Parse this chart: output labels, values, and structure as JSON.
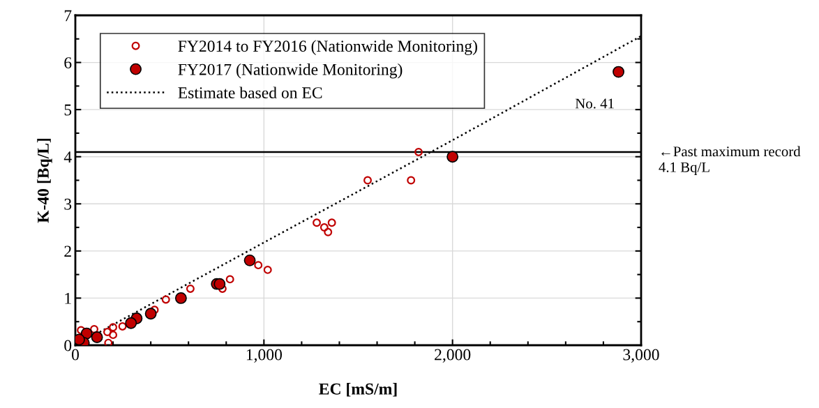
{
  "chart_data": {
    "type": "scatter",
    "xlabel": "EC [mS/m]",
    "ylabel": "K-40 [Bq/L]",
    "xlim": [
      0,
      3000
    ],
    "ylim": [
      0,
      7
    ],
    "xticks": [
      0,
      {
        "value": 1000,
        "label": "1,000"
      },
      {
        "value": 2000,
        "label": "2,000"
      },
      {
        "value": 3000,
        "label": "3,000"
      }
    ],
    "yticks": [
      0,
      1,
      2,
      3,
      4,
      5,
      6,
      7
    ],
    "grid": true,
    "legend": "top left",
    "marker": "circle",
    "series": [
      {
        "name": "FY2014 to FY2016 (Nationwide Monitoring)",
        "color": "#c00000",
        "x": [
          1820,
          1550,
          1780,
          1280,
          1320,
          1340,
          1360,
          970,
          1020,
          820,
          780,
          610,
          480,
          420,
          250,
          200,
          200,
          175,
          170,
          100,
          30
        ],
        "values": [
          4.1,
          3.5,
          3.5,
          2.6,
          2.5,
          2.4,
          2.6,
          1.7,
          1.6,
          1.4,
          1.2,
          1.2,
          0.97,
          0.75,
          0.4,
          0.38,
          0.22,
          0.05,
          0.28,
          0.34,
          0.32
        ]
      },
      {
        "name": "FY2017 (Nationwide Monitoring)",
        "color": "#c00000",
        "x": [
          2880,
          2000,
          925,
          750,
          765,
          560,
          400,
          325,
          295,
          115,
          60,
          45,
          20
        ],
        "values": [
          5.8,
          4.0,
          1.8,
          1.3,
          1.3,
          1.0,
          0.67,
          0.57,
          0.47,
          0.17,
          0.25,
          0.05,
          0.12
        ]
      },
      {
        "name": "Estimate based on EC",
        "type": "line",
        "color": "#000000",
        "line_style": "dotted",
        "marker": "none",
        "x": [
          0,
          1000,
          2000,
          3000
        ],
        "values": [
          0,
          2.18,
          4.35,
          6.56
        ]
      }
    ],
    "ref_lines": [
      {
        "axis": "y",
        "value": 4.1,
        "label": "←Past maximum record\n4.1 Bq/L",
        "color": "#000000"
      }
    ],
    "annotations": [
      {
        "text": "No. 41",
        "x": 2880,
        "y": 5.8
      }
    ]
  }
}
